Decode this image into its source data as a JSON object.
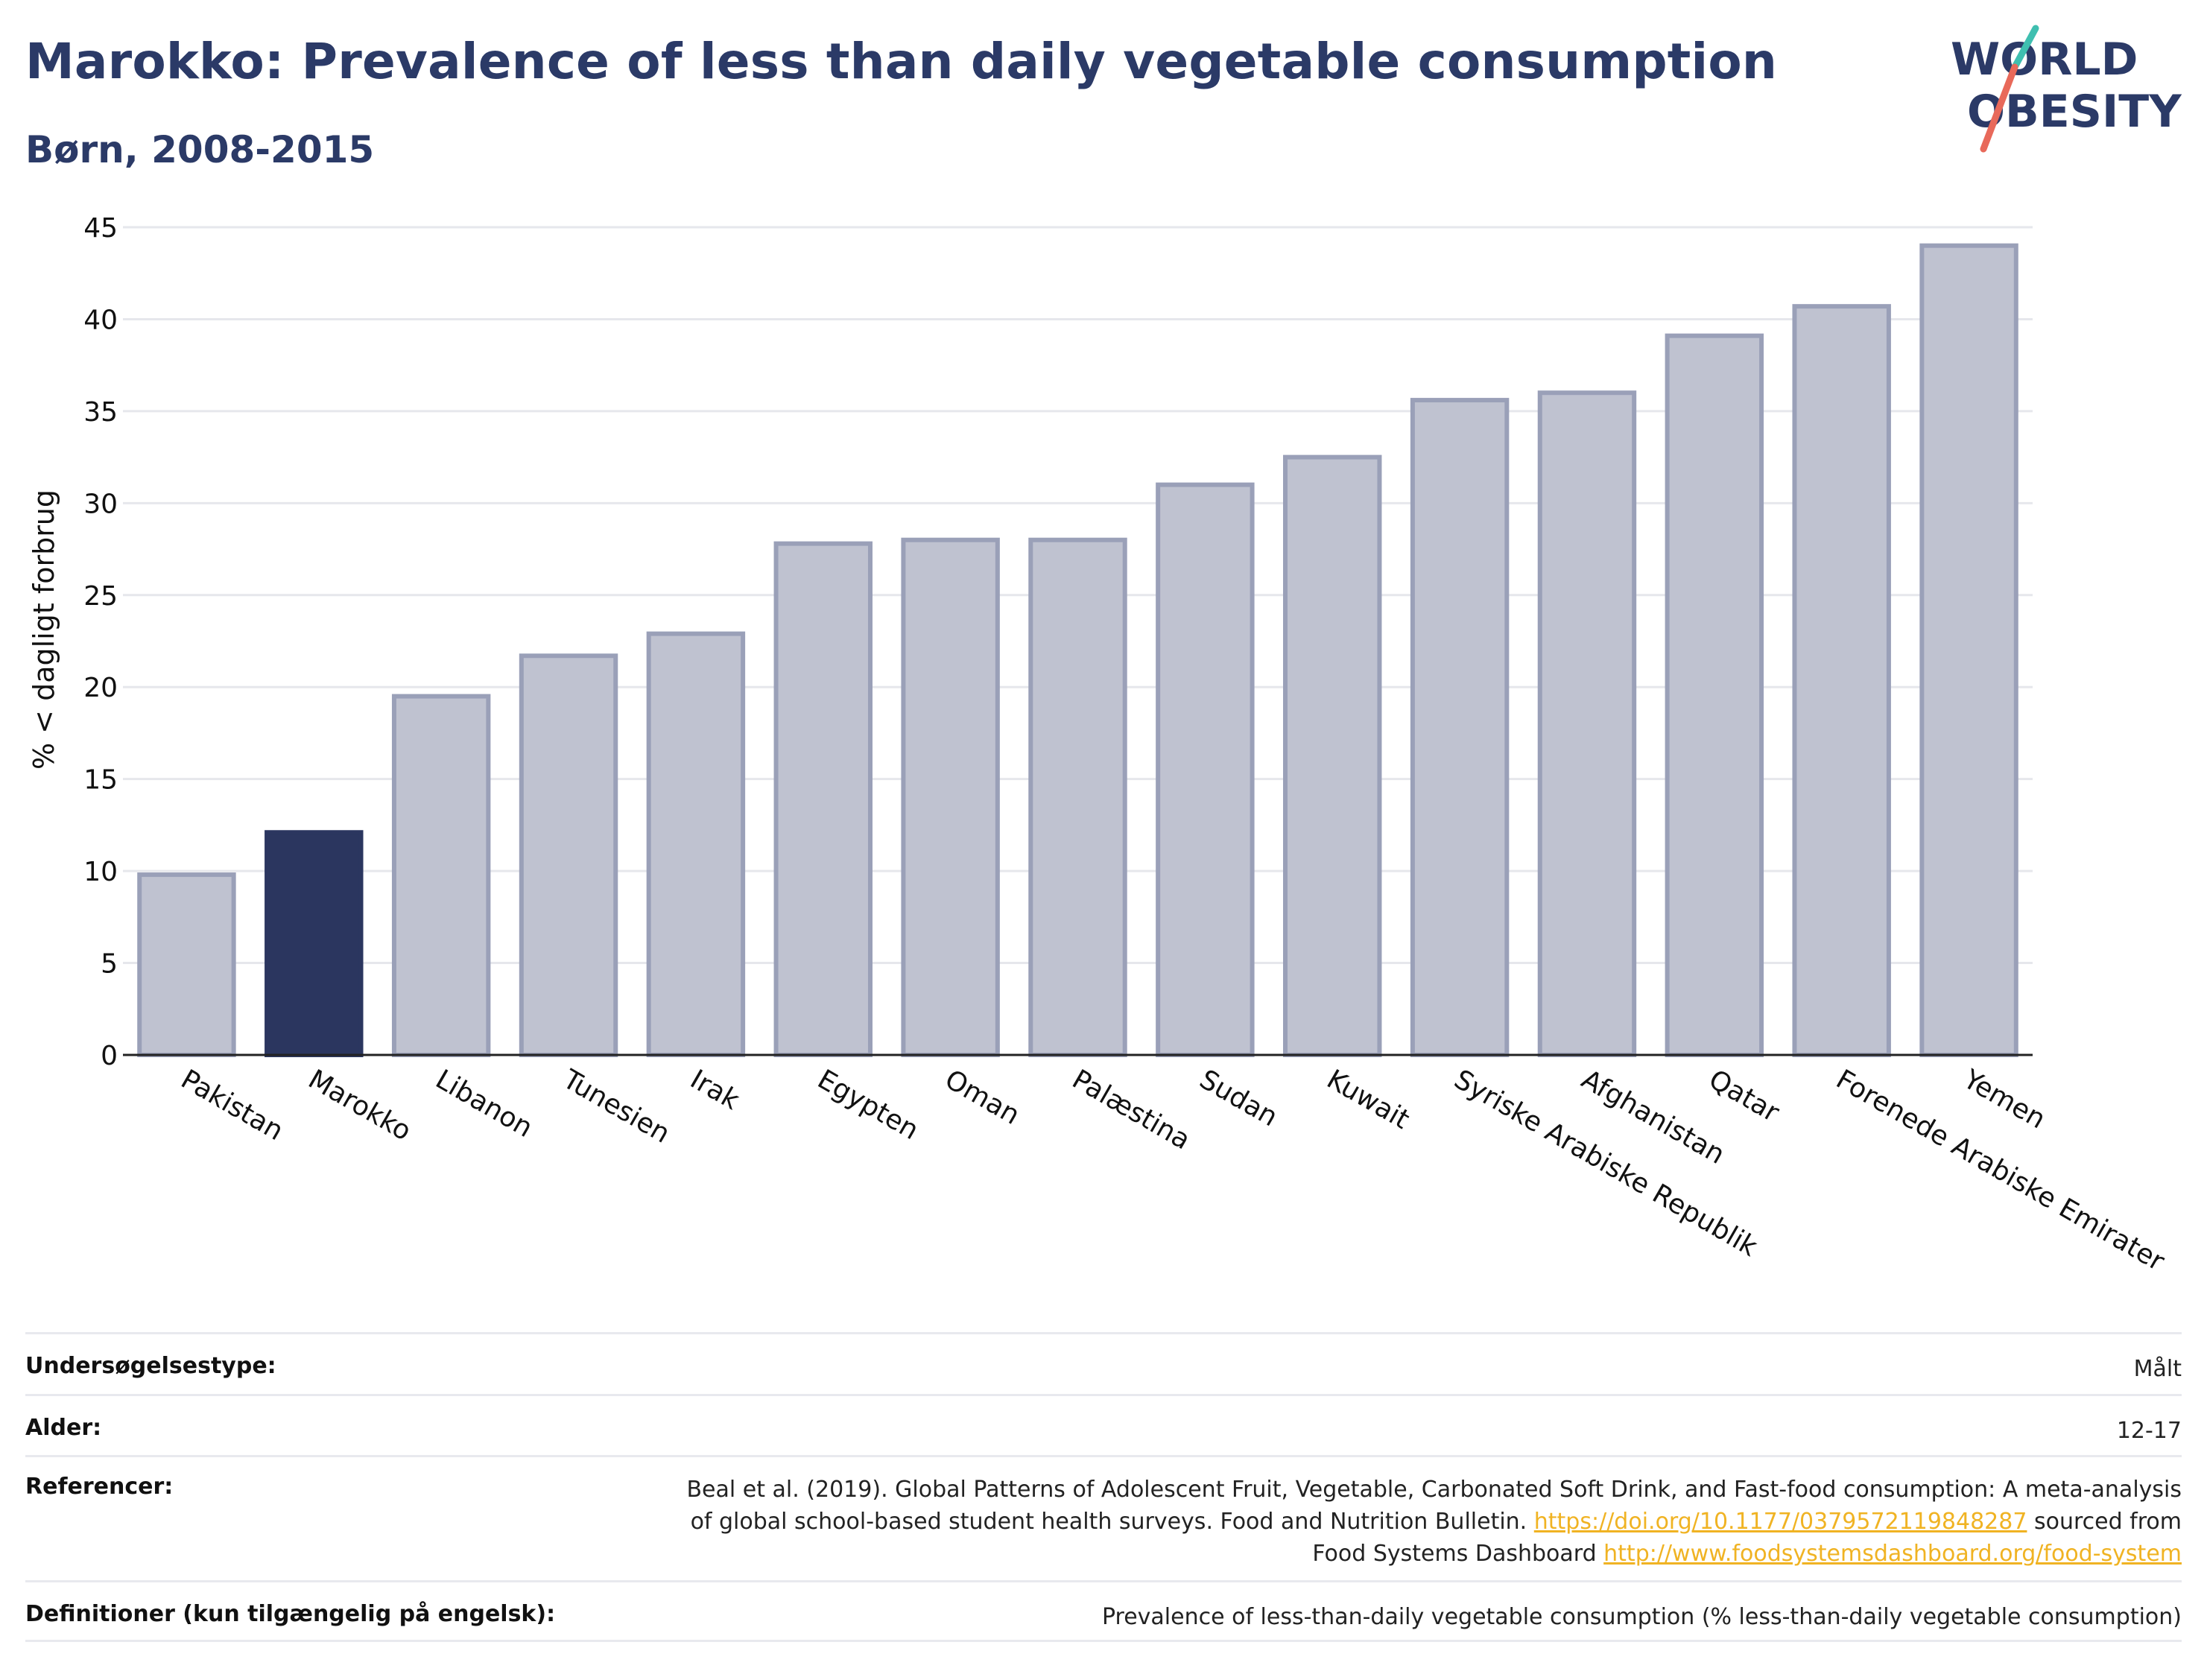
{
  "header": {
    "title": "Marokko: Prevalence of less than daily vegetable consumption",
    "subtitle": "Børn, 2008-2015"
  },
  "logo": {
    "line1": "WORLD",
    "line2": "OBESITY"
  },
  "colors": {
    "highlight": "#2b365f",
    "bar": "#bfc2d0",
    "bar_border": "#9aa0b8",
    "title": "#2b3a67",
    "link": "#f0b323"
  },
  "chart_data": {
    "type": "bar",
    "ylabel": "% < dagligt forbrug",
    "ylim": [
      0,
      45
    ],
    "yticks": [
      0,
      5,
      10,
      15,
      20,
      25,
      30,
      35,
      40,
      45
    ],
    "grid": true,
    "highlight": "Marokko",
    "categories": [
      "Pakistan",
      "Marokko",
      "Libanon",
      "Tunesien",
      "Irak",
      "Egypten",
      "Oman",
      "Palæstina",
      "Sudan",
      "Kuwait",
      "Syriske Arabiske Republik",
      "Afghanistan",
      "Qatar",
      "Forenede Arabiske Emirater",
      "Yemen"
    ],
    "values": [
      9.8,
      12.1,
      19.5,
      21.7,
      22.9,
      27.8,
      28.0,
      28.0,
      31.0,
      32.5,
      35.6,
      36.0,
      39.1,
      40.7,
      44.0
    ]
  },
  "meta": {
    "survey_label": "Undersøgelsestype:",
    "survey_value": "Målt",
    "age_label": "Alder:",
    "age_value": "12-17",
    "ref_label": "Referencer:",
    "ref_text1": "Beal et al. (2019). Global Patterns of Adolescent Fruit, Vegetable, Carbonated Soft Drink, and Fast-food consumption: A meta-analysis",
    "ref_text2": "of global school-based student health surveys. Food and Nutrition Bulletin. ",
    "ref_link1": "https://doi.org/10.1177/0379572119848287",
    "ref_text3": " sourced from",
    "ref_text4": "Food Systems Dashboard ",
    "ref_link2": "http://www.foodsystemsdashboard.org/food-system",
    "def_label": "Definitioner (kun tilgængelig på engelsk):",
    "def_value": "Prevalence of less-than-daily vegetable consumption (% less-than-daily vegetable consumption)"
  }
}
